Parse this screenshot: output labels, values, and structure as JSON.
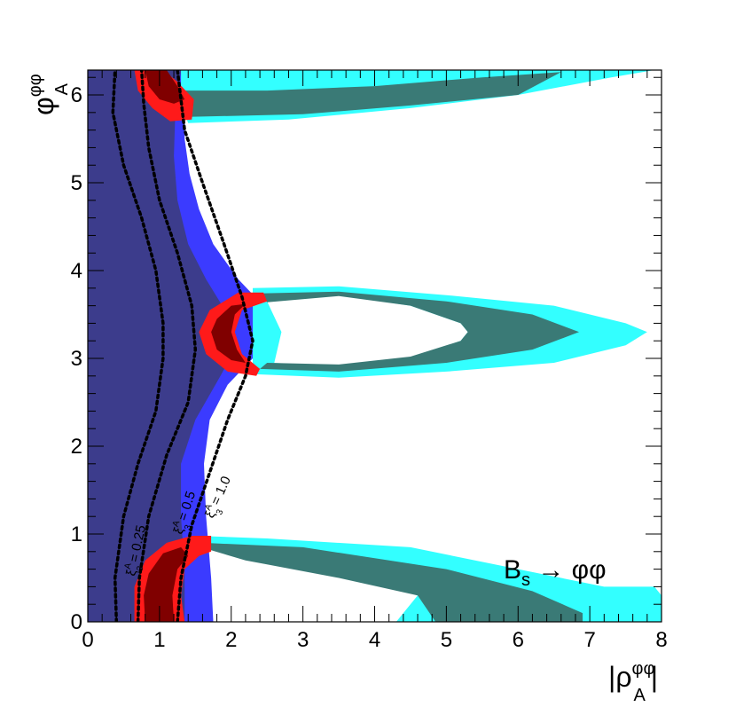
{
  "chart_data": {
    "type": "contour",
    "title": "",
    "xlabel": {
      "main": "|ρ",
      "sup": "φφ",
      "sub": "A",
      "close": "|"
    },
    "ylabel": {
      "main": "φ",
      "sup": "φφ",
      "sub": "A"
    },
    "xlim": [
      0,
      8
    ],
    "ylim": [
      0,
      6.2832
    ],
    "x_ticks": [
      0,
      1,
      2,
      3,
      4,
      5,
      6,
      7,
      8
    ],
    "y_ticks": [
      0,
      1,
      2,
      3,
      4,
      5,
      6
    ],
    "annotation": {
      "main": "B",
      "sub": "s",
      "rest": " → φφ"
    },
    "colors": {
      "dark_blue": "#3c3c8c",
      "blue": "#3b3bff",
      "cyan": "#33ffff",
      "teal": "#3a7a76",
      "red": "#ff1a1a",
      "dark_red": "#800000"
    },
    "regions": [
      {
        "name": "blue-band",
        "color": "blue",
        "points": [
          [
            0,
            0
          ],
          [
            1.75,
            0
          ],
          [
            1.72,
            0.5
          ],
          [
            1.65,
            1.2
          ],
          [
            1.62,
            1.8
          ],
          [
            1.7,
            2.3
          ],
          [
            1.95,
            2.7
          ],
          [
            2.3,
            3.0
          ],
          [
            2.6,
            3.3
          ],
          [
            2.45,
            3.6
          ],
          [
            2.1,
            3.9
          ],
          [
            1.75,
            4.3
          ],
          [
            1.55,
            4.7
          ],
          [
            1.42,
            5.1
          ],
          [
            1.35,
            5.5
          ],
          [
            1.35,
            6.0
          ],
          [
            1.4,
            6.2832
          ],
          [
            0,
            6.2832
          ]
        ]
      },
      {
        "name": "dark-blue-region",
        "color": "dark_blue",
        "points": [
          [
            0,
            0
          ],
          [
            1.35,
            0
          ],
          [
            1.35,
            0.6
          ],
          [
            1.3,
            1.2
          ],
          [
            1.3,
            1.8
          ],
          [
            1.5,
            2.3
          ],
          [
            1.85,
            2.8
          ],
          [
            2.05,
            3.1
          ],
          [
            1.95,
            3.5
          ],
          [
            1.65,
            3.9
          ],
          [
            1.4,
            4.3
          ],
          [
            1.25,
            4.8
          ],
          [
            1.2,
            5.3
          ],
          [
            1.22,
            5.8
          ],
          [
            1.3,
            6.2832
          ],
          [
            0,
            6.2832
          ]
        ]
      },
      {
        "name": "cyan-bottom",
        "color": "cyan",
        "points": [
          [
            1.5,
            0.98
          ],
          [
            2.5,
            0.95
          ],
          [
            4.5,
            0.85
          ],
          [
            6.0,
            0.6
          ],
          [
            7.2,
            0.4
          ],
          [
            7.9,
            0.4
          ],
          [
            8.0,
            0.3
          ],
          [
            8.0,
            0
          ],
          [
            4.3,
            0
          ],
          [
            4.6,
            0.3
          ],
          [
            3.5,
            0.55
          ],
          [
            2.2,
            0.75
          ],
          [
            1.6,
            0.85
          ]
        ]
      },
      {
        "name": "teal-bottom",
        "color": "teal",
        "points": [
          [
            1.6,
            0.9
          ],
          [
            3.0,
            0.85
          ],
          [
            5.0,
            0.6
          ],
          [
            6.2,
            0.35
          ],
          [
            6.9,
            0.1
          ],
          [
            6.9,
            0
          ],
          [
            4.85,
            0
          ],
          [
            4.6,
            0.3
          ],
          [
            3.5,
            0.5
          ],
          [
            2.2,
            0.7
          ],
          [
            1.7,
            0.82
          ]
        ]
      },
      {
        "name": "cyan-middle",
        "color": "cyan",
        "points": [
          [
            2.3,
            3.8
          ],
          [
            3.5,
            3.82
          ],
          [
            5.0,
            3.72
          ],
          [
            6.5,
            3.6
          ],
          [
            7.5,
            3.4
          ],
          [
            7.8,
            3.3
          ],
          [
            7.5,
            3.15
          ],
          [
            6.5,
            2.95
          ],
          [
            5.0,
            2.85
          ],
          [
            3.5,
            2.78
          ],
          [
            2.3,
            2.82
          ]
        ]
      },
      {
        "name": "white-hole-middle",
        "color": "white",
        "points": [
          [
            2.5,
            3.65
          ],
          [
            3.5,
            3.72
          ],
          [
            4.5,
            3.6
          ],
          [
            5.2,
            3.4
          ],
          [
            5.3,
            3.3
          ],
          [
            5.2,
            3.2
          ],
          [
            4.5,
            3.0
          ],
          [
            3.5,
            2.9
          ],
          [
            2.6,
            2.95
          ],
          [
            2.7,
            3.3
          ]
        ]
      },
      {
        "name": "teal-middle",
        "color": "teal",
        "points": [
          [
            2.4,
            3.74
          ],
          [
            3.5,
            3.76
          ],
          [
            5.0,
            3.65
          ],
          [
            6.2,
            3.5
          ],
          [
            6.85,
            3.3
          ],
          [
            6.2,
            3.1
          ],
          [
            5.0,
            2.95
          ],
          [
            3.5,
            2.85
          ],
          [
            2.4,
            2.88
          ],
          [
            2.5,
            2.95
          ],
          [
            3.5,
            2.93
          ],
          [
            4.5,
            3.02
          ],
          [
            5.2,
            3.2
          ],
          [
            5.3,
            3.3
          ],
          [
            5.2,
            3.4
          ],
          [
            4.5,
            3.6
          ],
          [
            3.5,
            3.71
          ],
          [
            2.5,
            3.64
          ]
        ]
      },
      {
        "name": "cyan-top",
        "color": "cyan",
        "points": [
          [
            1.3,
            6.2832
          ],
          [
            7.9,
            6.2832
          ],
          [
            7.3,
            6.2
          ],
          [
            6.0,
            6.0
          ],
          [
            4.5,
            5.85
          ],
          [
            2.8,
            5.72
          ],
          [
            1.4,
            5.68
          ],
          [
            1.3,
            5.9
          ]
        ]
      },
      {
        "name": "teal-top",
        "color": "teal",
        "points": [
          [
            1.3,
            6.05
          ],
          [
            2.5,
            6.05
          ],
          [
            4.0,
            6.1
          ],
          [
            5.5,
            6.2
          ],
          [
            6.6,
            6.26
          ],
          [
            6.0,
            6.0
          ],
          [
            4.5,
            5.88
          ],
          [
            3.0,
            5.78
          ],
          [
            1.4,
            5.75
          ]
        ]
      },
      {
        "name": "red-top",
        "color": "red",
        "points": [
          [
            0.65,
            6.2832
          ],
          [
            1.05,
            6.2832
          ],
          [
            1.25,
            6.15
          ],
          [
            1.48,
            5.95
          ],
          [
            1.45,
            5.72
          ],
          [
            1.15,
            5.7
          ],
          [
            0.9,
            5.85
          ],
          [
            0.7,
            6.05
          ]
        ]
      },
      {
        "name": "dark-red-top",
        "color": "dark_red",
        "points": [
          [
            0.8,
            6.2832
          ],
          [
            1.1,
            6.2832
          ],
          [
            1.25,
            6.1
          ],
          [
            1.35,
            5.95
          ],
          [
            1.2,
            5.9
          ],
          [
            1.0,
            5.95
          ],
          [
            0.85,
            6.1
          ]
        ]
      },
      {
        "name": "red-middle",
        "color": "red",
        "points": [
          [
            2.45,
            3.75
          ],
          [
            2.1,
            3.75
          ],
          [
            1.7,
            3.55
          ],
          [
            1.55,
            3.3
          ],
          [
            1.65,
            3.05
          ],
          [
            1.95,
            2.85
          ],
          [
            2.35,
            2.8
          ],
          [
            2.4,
            2.88
          ],
          [
            2.15,
            3.05
          ],
          [
            2.05,
            3.3
          ],
          [
            2.15,
            3.55
          ],
          [
            2.5,
            3.65
          ]
        ]
      },
      {
        "name": "dark-red-middle",
        "color": "dark_red",
        "points": [
          [
            2.2,
            3.62
          ],
          [
            2.0,
            3.6
          ],
          [
            1.8,
            3.45
          ],
          [
            1.72,
            3.3
          ],
          [
            1.8,
            3.1
          ],
          [
            2.0,
            2.98
          ],
          [
            2.2,
            2.95
          ],
          [
            2.08,
            3.1
          ],
          [
            2.0,
            3.3
          ],
          [
            2.05,
            3.5
          ]
        ]
      },
      {
        "name": "red-bottom",
        "color": "red",
        "points": [
          [
            0.65,
            0
          ],
          [
            1.35,
            0
          ],
          [
            1.3,
            0.3
          ],
          [
            1.35,
            0.6
          ],
          [
            1.55,
            0.75
          ],
          [
            1.72,
            0.8
          ],
          [
            1.72,
            0.98
          ],
          [
            1.45,
            0.98
          ],
          [
            1.1,
            0.9
          ],
          [
            0.8,
            0.7
          ],
          [
            0.65,
            0.4
          ]
        ]
      },
      {
        "name": "dark-red-bottom",
        "color": "dark_red",
        "points": [
          [
            0.8,
            0
          ],
          [
            1.2,
            0
          ],
          [
            1.18,
            0.3
          ],
          [
            1.25,
            0.6
          ],
          [
            1.4,
            0.75
          ],
          [
            1.3,
            0.85
          ],
          [
            1.05,
            0.78
          ],
          [
            0.85,
            0.55
          ],
          [
            0.78,
            0.3
          ]
        ]
      }
    ],
    "dashed_curves": [
      {
        "name": "xi-0.25-curve",
        "points": [
          [
            0.4,
            0
          ],
          [
            0.38,
            0.5
          ],
          [
            0.5,
            1.2
          ],
          [
            0.7,
            1.8
          ],
          [
            0.95,
            2.4
          ],
          [
            1.05,
            3.0
          ],
          [
            1.05,
            3.4
          ],
          [
            0.95,
            4.0
          ],
          [
            0.75,
            4.6
          ],
          [
            0.5,
            5.2
          ],
          [
            0.35,
            5.8
          ],
          [
            0.38,
            6.2832
          ]
        ]
      },
      {
        "name": "xi-0.5-curve",
        "points": [
          [
            0.7,
            0
          ],
          [
            0.72,
            0.5
          ],
          [
            0.85,
            1.2
          ],
          [
            1.1,
            1.9
          ],
          [
            1.4,
            2.5
          ],
          [
            1.5,
            3.1
          ],
          [
            1.45,
            3.6
          ],
          [
            1.25,
            4.2
          ],
          [
            1.0,
            4.8
          ],
          [
            0.85,
            5.4
          ],
          [
            0.78,
            5.9
          ],
          [
            0.75,
            6.2832
          ]
        ]
      },
      {
        "name": "xi-1.0-curve",
        "points": [
          [
            1.25,
            0
          ],
          [
            1.3,
            0.5
          ],
          [
            1.45,
            1.1
          ],
          [
            1.7,
            1.7
          ],
          [
            1.95,
            2.3
          ],
          [
            2.2,
            2.8
          ],
          [
            2.3,
            3.2
          ],
          [
            2.15,
            3.7
          ],
          [
            1.9,
            4.3
          ],
          [
            1.6,
            5.0
          ],
          [
            1.35,
            5.6
          ],
          [
            1.25,
            6.2832
          ]
        ]
      }
    ],
    "contour_labels": [
      {
        "name": "xi-0.25-label",
        "main": "ξ",
        "sup": "A",
        "sub": "3",
        "value": "= 0.25"
      },
      {
        "name": "xi-0.5-label",
        "main": "ξ",
        "sup": "A",
        "sub": "3",
        "value": "= 0.5"
      },
      {
        "name": "xi-1.0-label",
        "main": "ξ",
        "sup": "A",
        "sub": "3",
        "value": "= 1.0"
      }
    ]
  }
}
